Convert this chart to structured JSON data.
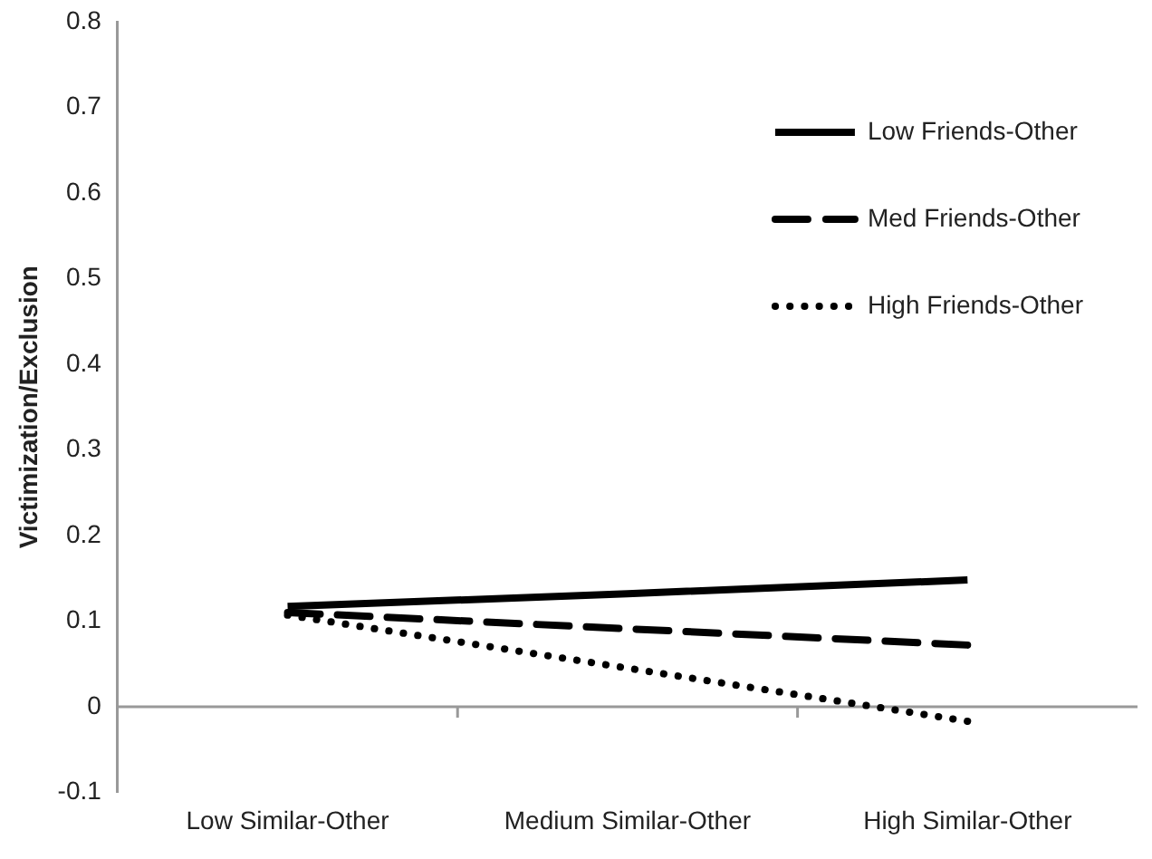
{
  "chart_data": {
    "type": "line",
    "ylabel": "Victimization/Exclusion",
    "categories": [
      "Low Similar-Other",
      "Medium Similar-Other",
      "High Similar-Other"
    ],
    "series": [
      {
        "name": "Low Friends-Other",
        "color": "#000000",
        "line_style": "solid",
        "values": [
          0.117,
          0.132,
          0.148
        ]
      },
      {
        "name": "Med Friends-Other",
        "color": "#000000",
        "line_style": "dashed",
        "values": [
          0.11,
          0.091,
          0.072
        ]
      },
      {
        "name": "High Friends-Other",
        "color": "#000000",
        "line_style": "dotted",
        "values": [
          0.107,
          0.045,
          -0.017
        ]
      }
    ],
    "ylim": [
      -0.1,
      0.8
    ],
    "yticks": [
      -0.1,
      0,
      0.1,
      0.2,
      0.3,
      0.4,
      0.5,
      0.6,
      0.7,
      0.8
    ],
    "ref_lines": [
      {
        "axis": "y",
        "value": 0,
        "color": "#999999"
      }
    ],
    "grid": false,
    "legend": "top right",
    "marker": "none"
  }
}
